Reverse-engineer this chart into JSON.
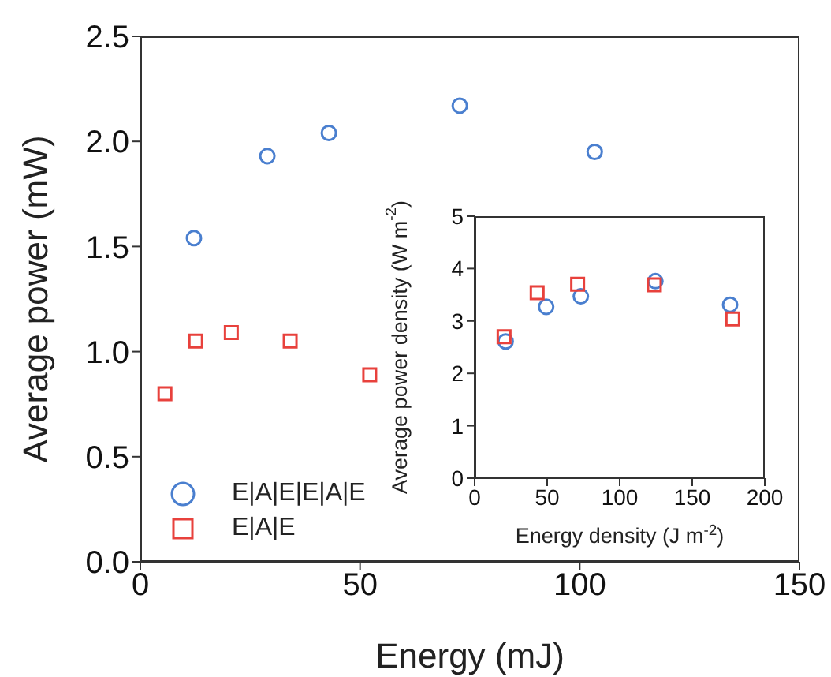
{
  "chart_data": [
    {
      "type": "scatter",
      "xlabel": "Energy (mJ)",
      "ylabel": "Average power (mW)",
      "xlim": [
        0,
        150
      ],
      "xticks": [
        0,
        50,
        100,
        150
      ],
      "ylim": [
        0,
        2.5
      ],
      "yticks": [
        {
          "value": 0,
          "label": "0.0"
        },
        0.5,
        {
          "value": 1,
          "label": "1.0"
        },
        1.5,
        {
          "value": 2,
          "label": "2.0"
        },
        2.5
      ],
      "grid": false,
      "legend": "bottom left",
      "series": [
        {
          "name": "E|A|E|E|A|E",
          "color": "#4a7fcf",
          "marker": "circle",
          "x": [
            12.2,
            28.9,
            42.9,
            72.7,
            103.4
          ],
          "values": [
            1.54,
            1.93,
            2.04,
            2.17,
            1.95
          ]
        },
        {
          "name": "E|A|E",
          "color": "#e8413c",
          "marker": "square",
          "x": [
            5.6,
            12.6,
            20.7,
            34.1,
            52.2
          ],
          "values": [
            0.8,
            1.05,
            1.09,
            1.05,
            0.89
          ]
        }
      ]
    },
    {
      "type": "scatter",
      "xlabel": "Energy density (J m$^{-2}$)",
      "ylabel": "Average power density (W m$^{-2}$)",
      "xlim": [
        0,
        200
      ],
      "xticks": [
        0,
        50,
        100,
        150,
        200
      ],
      "ylim": [
        0,
        5
      ],
      "yticks": [
        0,
        1,
        2,
        3,
        4,
        5
      ],
      "grid": false,
      "series": [
        {
          "color": "#4a7fcf",
          "marker": "circle",
          "x": [
            21.4,
            49.3,
            73.2,
            124.6,
            176.1
          ],
          "values": [
            2.61,
            3.27,
            3.47,
            3.76,
            3.31
          ]
        },
        {
          "color": "#e8413c",
          "marker": "square",
          "x": [
            20.3,
            43.1,
            71.0,
            123.9,
            177.9
          ],
          "values": [
            2.7,
            3.54,
            3.7,
            3.69,
            3.04
          ]
        }
      ]
    }
  ]
}
